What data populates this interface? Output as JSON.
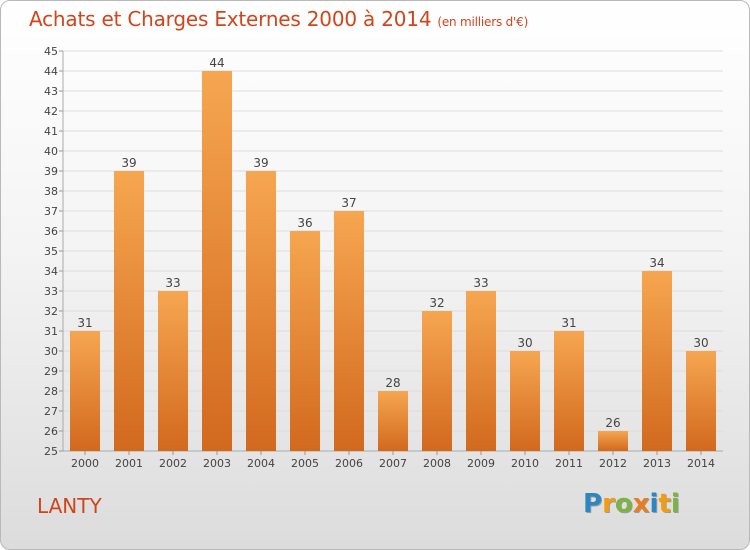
{
  "header": {
    "title": "Achats et Charges Externes 2000 à 2014",
    "subtitle": "(en milliers d'€)"
  },
  "footer": {
    "commune": "LANTY",
    "logo": [
      "P",
      "r",
      "o",
      "x",
      "i",
      "t",
      "i"
    ]
  },
  "colors": {
    "title": "#d0451b",
    "bar_top": "#f6a650",
    "bar_bottom": "#d2691e",
    "logo": [
      "#2e86c1",
      "#f39c12",
      "#7cb342",
      "#e67e22",
      "#2e86c1",
      "#f39c12",
      "#7cb342"
    ]
  },
  "chart_data": {
    "type": "bar",
    "categories": [
      "2000",
      "2001",
      "2002",
      "2003",
      "2004",
      "2005",
      "2006",
      "2007",
      "2008",
      "2009",
      "2010",
      "2011",
      "2012",
      "2013",
      "2014"
    ],
    "values": [
      31,
      39,
      33,
      44,
      39,
      36,
      37,
      28,
      32,
      33,
      30,
      31,
      26,
      34,
      30
    ],
    "ylim": [
      25,
      45
    ],
    "yticks": [
      25,
      26,
      27,
      28,
      29,
      30,
      31,
      32,
      33,
      34,
      35,
      36,
      37,
      38,
      39,
      40,
      41,
      42,
      43,
      44,
      45
    ],
    "grid": true,
    "data_labels": true
  }
}
